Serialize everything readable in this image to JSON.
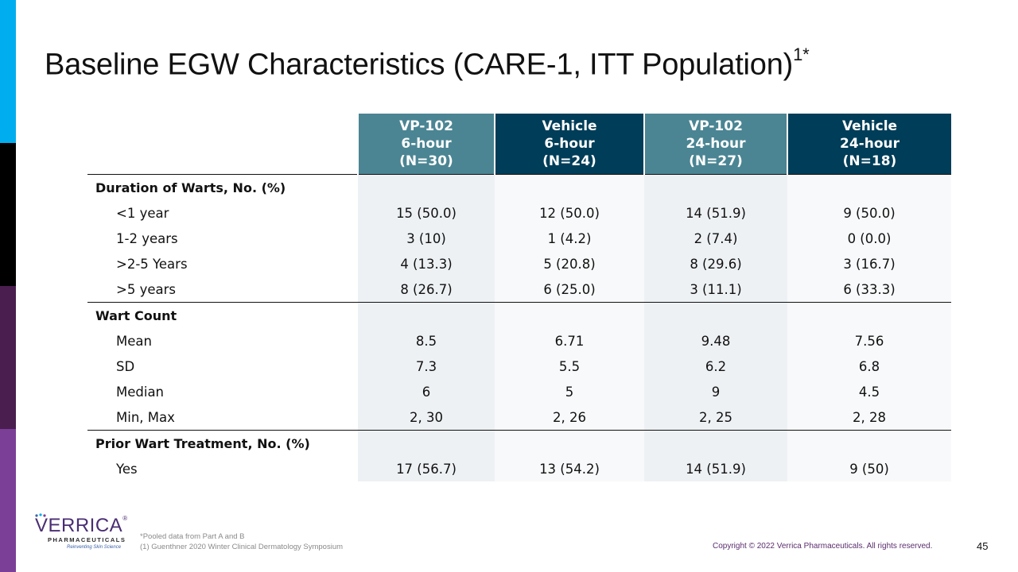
{
  "title": {
    "text": "Baseline EGW Characteristics (CARE-1, ITT Population)",
    "sup": "1*"
  },
  "colors": {
    "accent_cyan": "#00aeef",
    "accent_black": "#000000",
    "accent_plum": "#4a1e4f",
    "accent_purple": "#7b3f98",
    "header_teal": "#4b8593",
    "header_navy": "#003d58"
  },
  "table": {
    "headers": [
      {
        "line1": "VP-102",
        "line2": "6-hour",
        "line3": "(N=30)"
      },
      {
        "line1": "Vehicle",
        "line2": "6-hour",
        "line3": "(N=24)"
      },
      {
        "line1": "VP-102",
        "line2": "24-hour",
        "line3": "(N=27)"
      },
      {
        "line1": "Vehicle",
        "line2": "24-hour",
        "line3": "(N=18)"
      }
    ],
    "sections": [
      {
        "label": "Duration of Warts, No. (%)",
        "rows": [
          {
            "label": "<1 year",
            "values": [
              "15 (50.0)",
              "12 (50.0)",
              "14 (51.9)",
              "9 (50.0)"
            ]
          },
          {
            "label": "1-2 years",
            "values": [
              "3 (10)",
              "1 (4.2)",
              "2 (7.4)",
              "0 (0.0)"
            ]
          },
          {
            "label": ">2-5 Years",
            "values": [
              "4 (13.3)",
              "5 (20.8)",
              "8 (29.6)",
              "3 (16.7)"
            ]
          },
          {
            "label": ">5 years",
            "values": [
              "8 (26.7)",
              "6 (25.0)",
              "3 (11.1)",
              "6 (33.3)"
            ]
          }
        ]
      },
      {
        "label": "Wart Count",
        "rows": [
          {
            "label": "Mean",
            "values": [
              "8.5",
              "6.71",
              "9.48",
              "7.56"
            ]
          },
          {
            "label": "SD",
            "values": [
              "7.3",
              "5.5",
              "6.2",
              "6.8"
            ]
          },
          {
            "label": "Median",
            "values": [
              "6",
              "5",
              "9",
              "4.5"
            ]
          },
          {
            "label": "Min, Max",
            "values": [
              "2, 30",
              "2, 26",
              "2, 25",
              "2, 28"
            ]
          }
        ]
      },
      {
        "label": "Prior Wart Treatment, No. (%)",
        "rows": [
          {
            "label": "Yes",
            "values": [
              "17 (56.7)",
              "13 (54.2)",
              "14 (51.9)",
              "9 (50)"
            ]
          }
        ]
      }
    ]
  },
  "logo": {
    "name": "VERRICA",
    "registered": "®",
    "subtitle": "PHARMACEUTICALS",
    "tagline": "Reinventing Skin Science"
  },
  "footnotes": [
    "*Pooled data from Part A and B",
    "(1) Guenthner 2020 Winter Clinical Dermatology Symposium"
  ],
  "copyright": "Copyright © 2022 Verrica Pharmaceuticals. All rights reserved.",
  "page_number": "45"
}
